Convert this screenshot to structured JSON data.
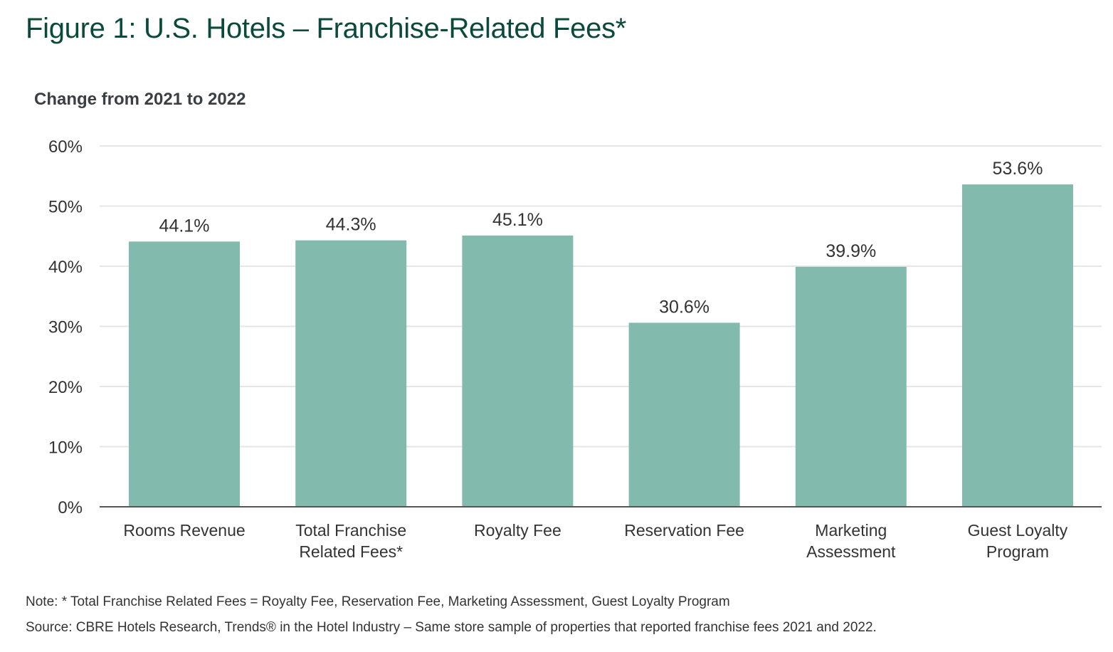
{
  "title": "Figure 1: U.S. Hotels – Franchise-Related Fees*",
  "note": "Note: * Total Franchise Related Fees = Royalty Fee, Reservation Fee, Marketing Assessment, Guest Loyalty Program",
  "source": "Source: CBRE Hotels Research, Trends® in the Hotel Industry – Same store sample of properties that reported franchise fees 2021 and 2022.",
  "colors": {
    "title": "#0b4a3a",
    "bar": "#82bbad",
    "grid": "#e6e6e6",
    "axis": "#555555",
    "text": "#333333"
  },
  "chart_data": {
    "type": "bar",
    "title": "Change from 2021 to 2022",
    "xlabel": "",
    "ylabel": "",
    "ylim": [
      0,
      60
    ],
    "yticks": [
      0,
      10,
      20,
      30,
      40,
      50,
      60
    ],
    "ytick_labels": [
      "0%",
      "10%",
      "20%",
      "30%",
      "40%",
      "50%",
      "60%"
    ],
    "grid": true,
    "legend": "none",
    "categories": [
      [
        "Rooms Revenue"
      ],
      [
        "Total Franchise",
        "Related Fees*"
      ],
      [
        "Royalty Fee"
      ],
      [
        "Reservation Fee"
      ],
      [
        "Marketing",
        "Assessment"
      ],
      [
        "Guest Loyalty",
        "Program"
      ]
    ],
    "values": [
      44.1,
      44.3,
      45.1,
      30.6,
      39.9,
      53.6
    ],
    "value_labels": [
      "44.1%",
      "44.3%",
      "45.1%",
      "30.6%",
      "39.9%",
      "53.6%"
    ]
  }
}
